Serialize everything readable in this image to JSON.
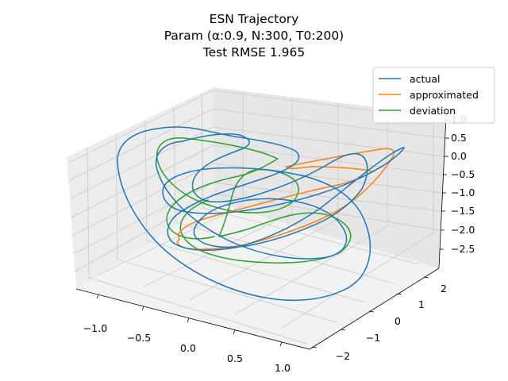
{
  "chart_data": {
    "type": "line3d",
    "title_lines": [
      "ESN Trajectory",
      "Param (α:0.9, N:300, T0:200)",
      "Test RMSE 1.965"
    ],
    "x_ticks": [
      "−1.0",
      "−0.5",
      "0.0",
      "0.5",
      "1.0"
    ],
    "y_ticks": [
      "−2",
      "−1",
      "0",
      "1",
      "2"
    ],
    "z_ticks": [
      "1.0",
      "0.5",
      "0.0",
      "−0.5",
      "−1.0",
      "−1.5",
      "−2.0",
      "−2.5"
    ],
    "legend": {
      "placement": "top-right",
      "entries": [
        {
          "label": "actual",
          "color": "#1f77b4"
        },
        {
          "label": "approximated",
          "color": "#ff7f0e"
        },
        {
          "label": "deviation",
          "color": "#2ca02c"
        }
      ]
    },
    "series": [
      {
        "name": "actual",
        "color": "#1f77b4"
      },
      {
        "name": "approximated",
        "color": "#ff7f0e"
      },
      {
        "name": "deviation",
        "color": "#2ca02c"
      }
    ]
  }
}
